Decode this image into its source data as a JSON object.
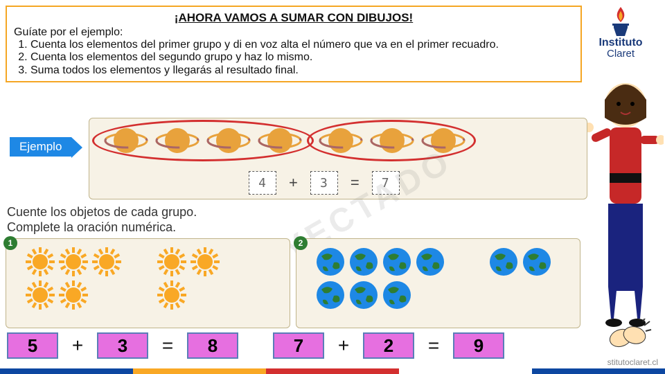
{
  "instructions": {
    "title": "¡AHORA VAMOS A SUMAR CON DIBUJOS!",
    "subtitle": "Guíate por el ejemplo:",
    "step1": "Cuenta los elementos del primer grupo y di en voz alta el número que va en el primer recuadro.",
    "step2": "Cuenta los elementos del segundo grupo y haz lo mismo.",
    "step3": "Suma todos los elementos y llegarás al resultado final."
  },
  "logo": {
    "line1": "Instituto",
    "line2": "Claret"
  },
  "ejemplo_label": "Ejemplo",
  "example": {
    "group1_count": 4,
    "group2_count": 3,
    "box1": "4",
    "op1": "+",
    "box2": "3",
    "op2": "=",
    "box3": "7",
    "planet_color": "#e8a23c",
    "ring_color": "#d32f2f",
    "panel_bg": "#f7f2e6"
  },
  "count_text": {
    "line1": "Cuente los objetos de cada grupo.",
    "line2": "Complete la oración numérica."
  },
  "exercise1": {
    "badge": "1",
    "icon": "sun",
    "group1_count": 5,
    "group2_count": 3,
    "icon_color": "#f9a825",
    "answer": {
      "a": "5",
      "op1": "+",
      "b": "3",
      "op2": "=",
      "c": "8"
    }
  },
  "exercise2": {
    "badge": "2",
    "icon": "earth",
    "group1_count": 7,
    "group2_count": 2,
    "icon_color_sea": "#1e88e5",
    "icon_color_land": "#2e7d32",
    "answer": {
      "a": "7",
      "op1": "+",
      "b": "2",
      "op2": "=",
      "c": "9"
    }
  },
  "answer_box_bg": "#e66fe0",
  "answer_box_border": "#5a7db8",
  "footer_colors": [
    "#0d47a1",
    "#f9a825",
    "#d32f2f",
    "#fff",
    "#0d47a1"
  ],
  "footer_url": "stitutoclaret.cl",
  "watermark": "PROYECTADO"
}
